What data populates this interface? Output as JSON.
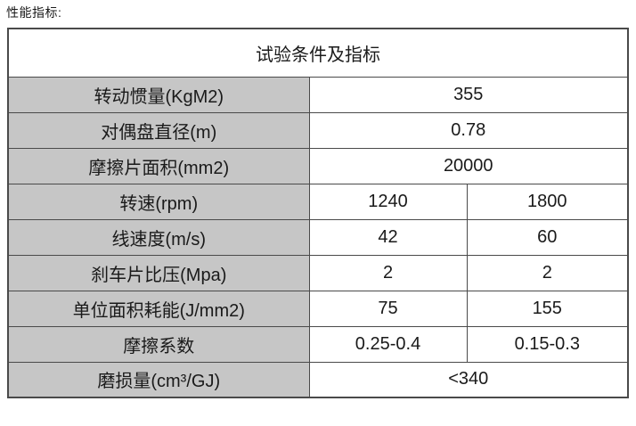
{
  "page": {
    "heading": "性能指标:"
  },
  "table": {
    "title": "试验条件及指标",
    "rows": [
      {
        "label": "转动惯量(KgM2)",
        "values": [
          "355"
        ],
        "merged": true
      },
      {
        "label": "对偶盘直径(m)",
        "values": [
          "0.78"
        ],
        "merged": true
      },
      {
        "label": "摩擦片面积(mm2)",
        "values": [
          "20000"
        ],
        "merged": true
      },
      {
        "label": "转速(rpm)",
        "values": [
          "1240",
          "1800"
        ],
        "merged": false
      },
      {
        "label": "线速度(m/s)",
        "values": [
          "42",
          "60"
        ],
        "merged": false
      },
      {
        "label": "刹车片比压(Mpa)",
        "values": [
          "2",
          "2"
        ],
        "merged": false
      },
      {
        "label": "单位面积耗能(J/mm2)",
        "values": [
          "75",
          "155"
        ],
        "merged": false
      },
      {
        "label": "摩擦系数",
        "values": [
          "0.25-0.4",
          "0.15-0.3"
        ],
        "merged": false
      },
      {
        "label": "磨损量(cm³/GJ)",
        "values": [
          "<340"
        ],
        "merged": true
      }
    ],
    "colors": {
      "label_bg": "#c6c6c6",
      "cell_bg": "#ffffff",
      "border": "#4a4a4a",
      "text": "#1a1a1a"
    }
  }
}
